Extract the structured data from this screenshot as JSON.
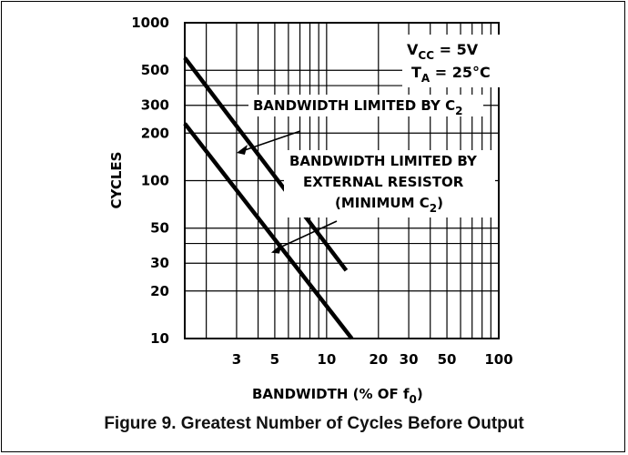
{
  "chart_data": {
    "type": "line",
    "xscale": "log",
    "yscale": "log",
    "xlim": [
      1.5,
      100
    ],
    "ylim": [
      10,
      1000
    ],
    "xlabel_main": "BANDWIDTH (% OF f",
    "xlabel_sub": "0",
    "xlabel_end": ")",
    "ylabel": "CYCLES",
    "x_ticks": [
      3,
      5,
      10,
      20,
      30,
      50,
      100
    ],
    "x_tick_labels": [
      "3",
      "5",
      "10",
      "20",
      "30",
      "50",
      "100"
    ],
    "y_ticks": [
      10,
      20,
      30,
      50,
      100,
      200,
      300,
      500,
      1000
    ],
    "y_tick_labels": [
      "10",
      "20",
      "30",
      "50",
      "100",
      "200",
      "300",
      "500",
      "1000"
    ],
    "grid": true,
    "series": [
      {
        "x": [
          1.5,
          13
        ],
        "y": [
          600,
          27
        ]
      },
      {
        "x": [
          1.5,
          14
        ],
        "y": [
          230,
          10
        ]
      }
    ],
    "conditions": {
      "vcc_main": "V",
      "vcc_sub": "CC",
      "vcc_value": " = 5V",
      "ta_main": "T",
      "ta_sub": "A",
      "ta_value": " = 25°C"
    },
    "annotations": [
      {
        "lines": [
          {
            "main": "BANDWIDTH LIMITED BY C",
            "sub": "2"
          }
        ],
        "points_to": [
          3,
          150
        ]
      },
      {
        "lines": [
          {
            "main": "BANDWIDTH LIMITED BY",
            "sub": ""
          },
          {
            "main": "EXTERNAL RESISTOR",
            "sub": ""
          },
          {
            "main": "(MINIMUM C",
            "sub": "2",
            "tail": ")"
          }
        ],
        "points_to": [
          5,
          35
        ]
      }
    ]
  },
  "caption": "Figure 9. Greatest Number of Cycles Before Output"
}
